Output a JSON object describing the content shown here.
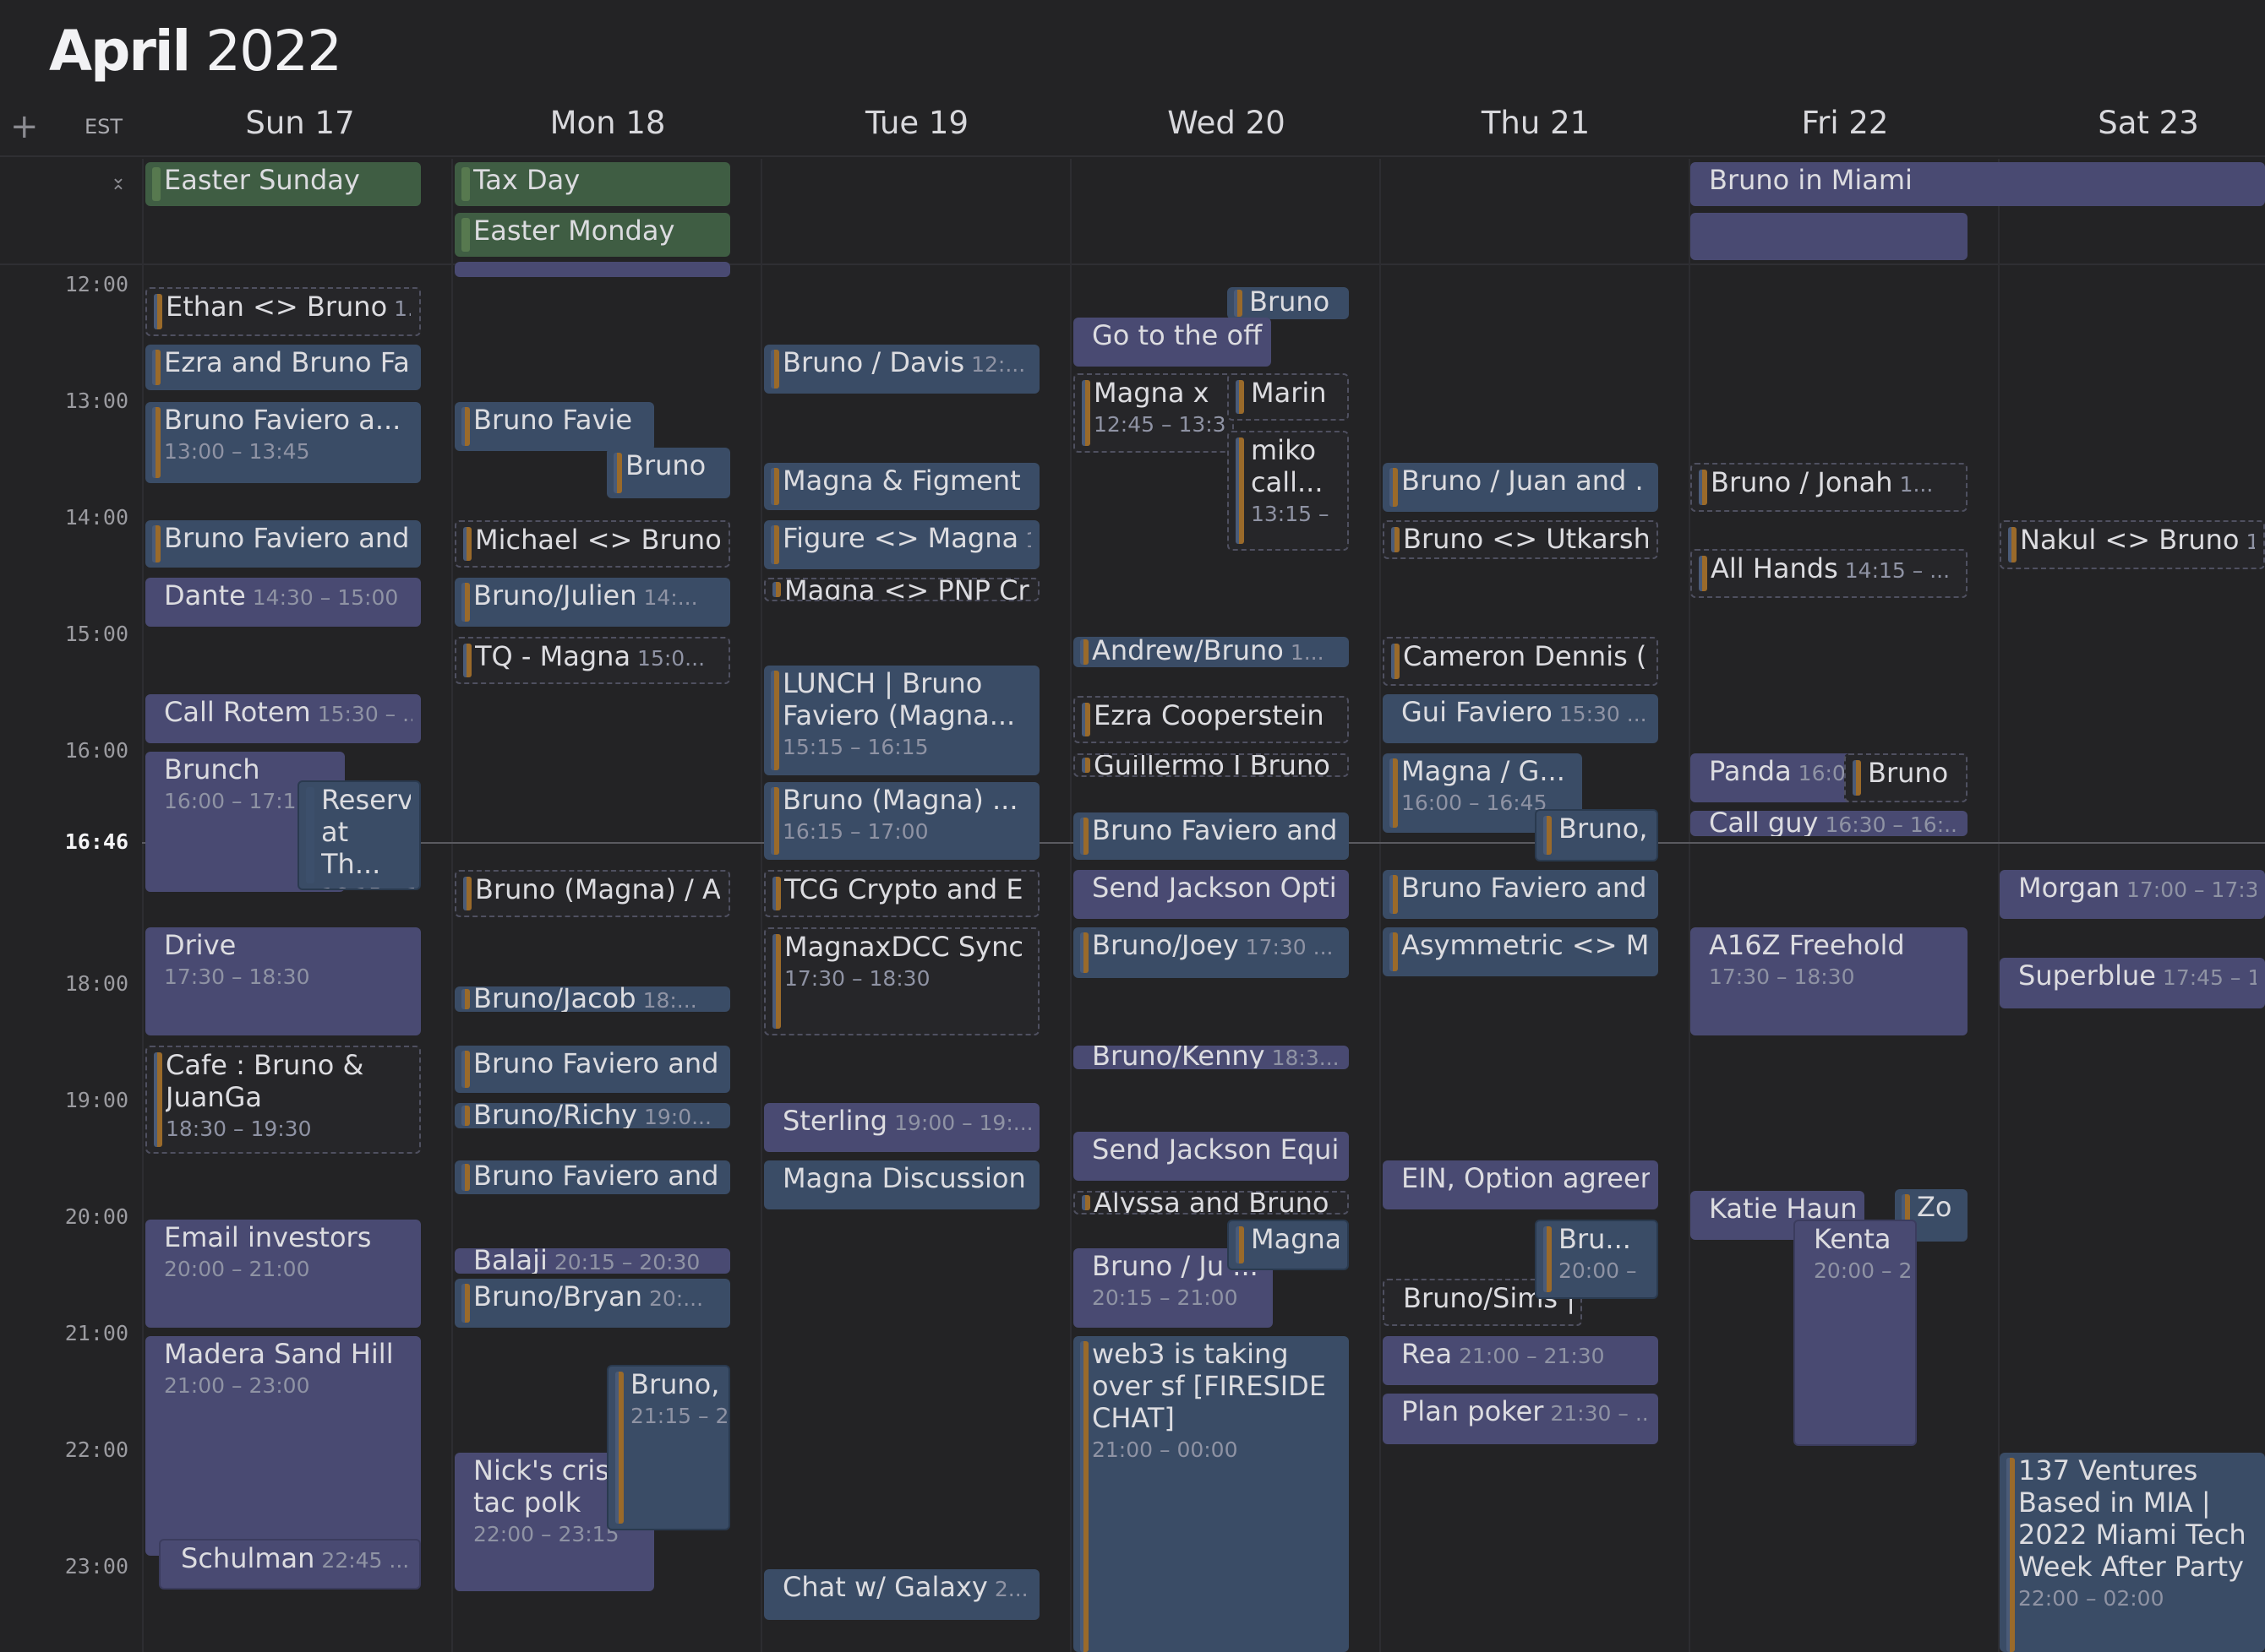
{
  "header": {
    "month": "April",
    "year": "2022"
  },
  "timezone": "EST",
  "add_icon": "plus-icon",
  "collapse_icon": "collapse-allday-icon",
  "days": [
    "Sun 17",
    "Mon 18",
    "Tue 19",
    "Wed 20",
    "Thu 21",
    "Fri 22",
    "Sat 23"
  ],
  "hours": [
    "12:00",
    "13:00",
    "14:00",
    "15:00",
    "16:00",
    "18:00",
    "19:00",
    "20:00",
    "21:00",
    "22:00",
    "23:00"
  ],
  "now": "16:46",
  "colors": {
    "blue": "#3a4c66",
    "purple": "#494a72",
    "green": "#3f5d43",
    "accent_orange": "#9a6a2a",
    "background": "#232325"
  },
  "allday": [
    {
      "title": "Easter Sunday"
    },
    {
      "title": "Tax Day"
    },
    {
      "title": "Easter Monday"
    },
    {
      "title": "Bruno in Miami"
    },
    {
      "title": ""
    }
  ],
  "events": {
    "sun": [
      {
        "title": "Ethan <> Bruno",
        "time": "1..."
      },
      {
        "title": "Ezra and Bruno Fa"
      },
      {
        "title": "Bruno Faviero a...",
        "time": "13:00 – 13:45"
      },
      {
        "title": "Bruno Faviero and"
      },
      {
        "title": "Dante",
        "time": "14:30 – 15:00"
      },
      {
        "title": "Call Rotem",
        "time": "15:30 – ..."
      },
      {
        "title": "Brunch",
        "time": "16:00 – 17:15"
      },
      {
        "title": "Reserv at Th...",
        "time": "16:15 – 17"
      },
      {
        "title": "Drive",
        "time": "17:30 – 18:30"
      },
      {
        "title": "Cafe : Bruno & JuanGa",
        "time": "18:30 – 19:30"
      },
      {
        "title": "Email investors",
        "time": "20:00 – 21:00"
      },
      {
        "title": "Madera Sand Hill",
        "time": "21:00 – 23:00"
      },
      {
        "title": "Schulman",
        "time": "22:45 ..."
      }
    ],
    "mon": [
      {
        "title": "Bruno Favie"
      },
      {
        "title": "Bruno"
      },
      {
        "title": "Michael <> Bruno"
      },
      {
        "title": "Bruno/Julien",
        "time": "14:..."
      },
      {
        "title": "TQ - Magna",
        "time": "15:0..."
      },
      {
        "title": "Bruno (Magna) / A"
      },
      {
        "title": "Bruno/Jacob",
        "time": "18:..."
      },
      {
        "title": "Bruno Faviero and"
      },
      {
        "title": "Bruno/Richy",
        "time": "19:0..."
      },
      {
        "title": "Bruno Faviero and"
      },
      {
        "title": "Balaji",
        "time": "20:15 – 20:30"
      },
      {
        "title": "Bruno/Bryan",
        "time": "20:..."
      },
      {
        "title": "Bruno,",
        "time": "21:15 – 2"
      },
      {
        "title": "Nick's crispy tac polk",
        "time": "22:00 – 23:15"
      }
    ],
    "tue": [
      {
        "title": "Bruno / Davis",
        "time": "12:..."
      },
      {
        "title": "Magna & Figment"
      },
      {
        "title": "Figure <> Magna",
        "time": "1"
      },
      {
        "title": "Magna <> PNP Cr"
      },
      {
        "title": "LUNCH | Bruno Faviero (Magna...",
        "time": "15:15 – 16:15"
      },
      {
        "title": "Bruno (Magna) ...",
        "time": "16:15 – 17:00"
      },
      {
        "title": "TCG Crypto and E"
      },
      {
        "title": "MagnaxDCC Sync",
        "time": "17:30 – 18:30"
      },
      {
        "title": "Sterling",
        "time": "19:00 – 19:..."
      },
      {
        "title": "Magna Discussion"
      },
      {
        "title": "Chat w/ Galaxy",
        "time": "2..."
      }
    ],
    "wed": [
      {
        "title": "Bruno"
      },
      {
        "title": "Go to the off"
      },
      {
        "title": "Magna x",
        "time": "12:45 – 13:3"
      },
      {
        "title": "Marin"
      },
      {
        "title": "miko call...",
        "time": "13:15 –"
      },
      {
        "title": "Andrew/Bruno",
        "time": "1..."
      },
      {
        "title": "Ezra Cooperstein"
      },
      {
        "title": "Guillermo I Bruno"
      },
      {
        "title": "Bruno Faviero and"
      },
      {
        "title": "Send Jackson Opti"
      },
      {
        "title": "Bruno/Joey",
        "time": "17:30 ..."
      },
      {
        "title": "Bruno/Kenny",
        "time": "18:3..."
      },
      {
        "title": "Send Jackson Equi"
      },
      {
        "title": "Alyssa and Bruno"
      },
      {
        "title": "Magna"
      },
      {
        "title": "Bruno / Ju ...",
        "time": "20:15 – 21:00"
      },
      {
        "title": "web3 is taking over sf [FIRESIDE CHAT]",
        "time": "21:00 – 00:00"
      }
    ],
    "thu": [
      {
        "title": "Bruno / Juan and ."
      },
      {
        "title": "Bruno <> Utkarsh"
      },
      {
        "title": "Cameron Dennis ("
      },
      {
        "title": "Gui Faviero",
        "time": "15:30 ..."
      },
      {
        "title": "Magna / G...",
        "time": "16:00 – 16:45"
      },
      {
        "title": "Bruno,"
      },
      {
        "title": "Bruno Faviero and"
      },
      {
        "title": "Asymmetric <> M"
      },
      {
        "title": "EIN, Option agreen"
      },
      {
        "title": "Bru...",
        "time": "20:00 –"
      },
      {
        "title": "Bruno/Sims |"
      },
      {
        "title": "Rea",
        "time": "21:00 – 21:30"
      },
      {
        "title": "Plan poker",
        "time": "21:30 – ..."
      }
    ],
    "fri": [
      {
        "title": "Bruno / Jonah",
        "time": "1..."
      },
      {
        "title": "All Hands",
        "time": "14:15 – ..."
      },
      {
        "title": "Panda",
        "time": "16:0"
      },
      {
        "title": "Bruno"
      },
      {
        "title": "Call guy",
        "time": "16:30 – 16:..."
      },
      {
        "title": "A16Z Freehold",
        "time": "17:30 – 18:30"
      },
      {
        "title": "Katie Haun"
      },
      {
        "title": "Zo"
      },
      {
        "title": "Kenta",
        "time": "20:00 – 2"
      }
    ],
    "sat": [
      {
        "title": "Nakul <> Bruno",
        "time": "1..."
      },
      {
        "title": "Morgan",
        "time": "17:00 – 17:30"
      },
      {
        "title": "Superblue",
        "time": "17:45 – 1..."
      },
      {
        "title": "137 Ventures Based in MIA | 2022 Miami Tech Week After Party",
        "time": "22:00 – 02:00"
      }
    ]
  }
}
